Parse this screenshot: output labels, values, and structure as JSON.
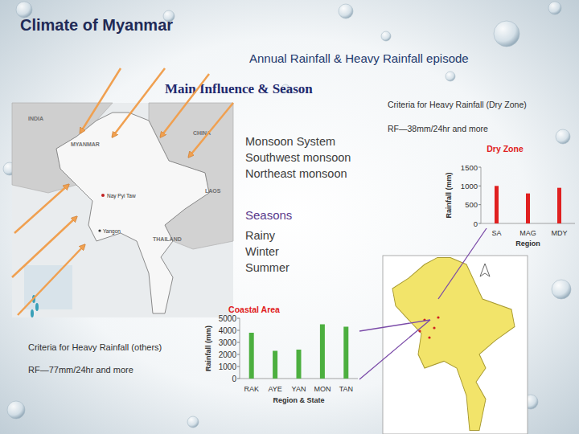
{
  "slide": {
    "title": "Climate of Myanmar",
    "subtitle": "Annual Rainfall & Heavy Rainfall episode",
    "heading": "Main Influence & Season",
    "influence": {
      "title": "Monsoon System",
      "items": [
        "Southwest monsoon",
        "Northeast monsoon"
      ]
    },
    "seasons": {
      "title": "Seasons",
      "items": [
        "Rainy",
        "Winter",
        "Summer"
      ]
    },
    "criteria_dry": {
      "title": "Criteria for Heavy Rainfall (Dry Zone)",
      "text": "RF—38mm/24hr and more"
    },
    "criteria_others": {
      "title": "Criteria for Heavy Rainfall (others)",
      "text": "RF—77mm/24hr and more"
    },
    "map_labels": [
      "INDIA",
      "CHINA",
      "MYANMAR",
      "LAOS",
      "THAILAND",
      "Nay Pyi Taw",
      "Yangon"
    ]
  },
  "chart_data": [
    {
      "type": "bar",
      "title": "Dry Zone",
      "x_label": "Region",
      "y_label": "Rainfall (mm)",
      "categories": [
        "SA",
        "MAG",
        "MDY"
      ],
      "values": [
        1000,
        800,
        950
      ],
      "color": "#e02020",
      "ylim": [
        0,
        1500
      ],
      "yticks": [
        0,
        500,
        1000,
        1500
      ],
      "grid": false
    },
    {
      "type": "bar",
      "title": "Coastal Area",
      "x_label": "Region & State",
      "y_label": "Rainfall (mm)",
      "categories": [
        "RAK",
        "AYE",
        "YAN",
        "MON",
        "TAN"
      ],
      "values": [
        3800,
        2300,
        2400,
        4500,
        4300
      ],
      "color": "#4caf3f",
      "ylim": [
        0,
        5000
      ],
      "yticks": [
        0,
        1000,
        2000,
        3000,
        4000,
        5000
      ],
      "grid": false
    }
  ]
}
